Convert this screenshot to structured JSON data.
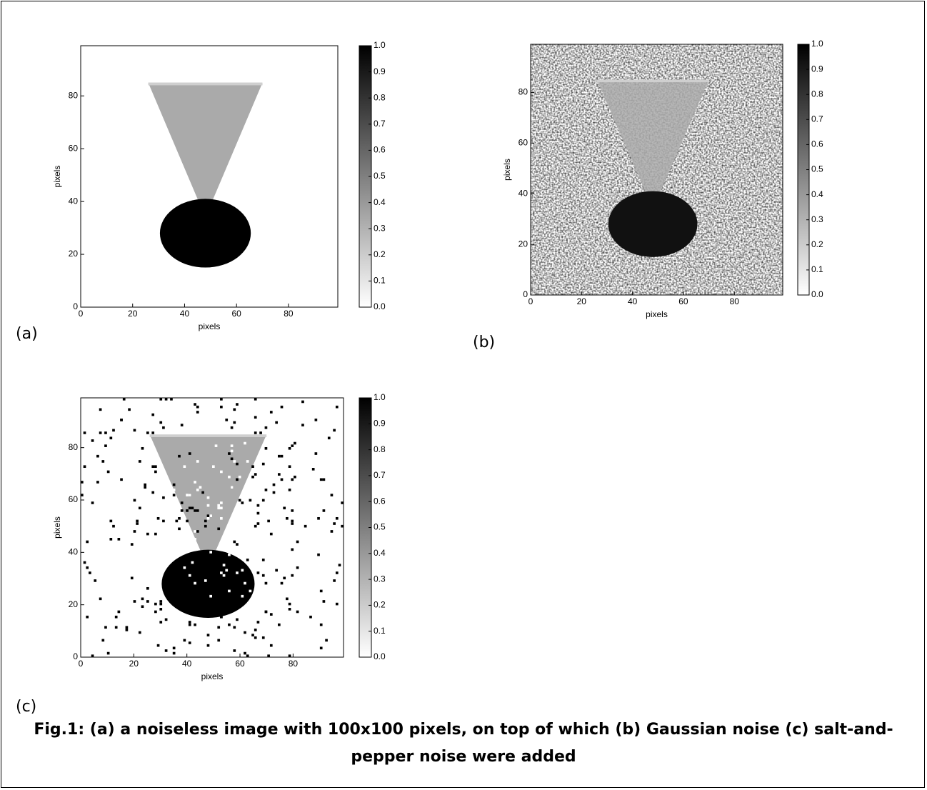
{
  "chart_data": [
    {
      "type": "image",
      "xlabel": "pixels",
      "ylabel": "pixels",
      "xlim": [
        0,
        99
      ],
      "ylim": [
        0,
        99
      ],
      "xticks": [
        0,
        20,
        40,
        60,
        80
      ],
      "yticks": [
        0,
        20,
        40,
        60,
        80
      ],
      "colorbar": {
        "lim": [
          0,
          1
        ],
        "ticks": [
          {
            "value": 0,
            "label": "0.0"
          },
          0.1,
          0.2,
          0.3,
          0.4,
          0.5,
          0.6,
          0.7,
          0.8,
          0.9,
          {
            "value": 1,
            "label": "1.0"
          }
        ]
      }
    },
    {
      "type": "image",
      "xlabel": "pixels",
      "ylabel": "pixels",
      "xlim": [
        0,
        99
      ],
      "ylim": [
        0,
        99
      ],
      "xticks": [
        0,
        20,
        40,
        60,
        80
      ],
      "yticks": [
        0,
        20,
        40,
        60,
        80
      ],
      "colorbar": {
        "lim": [
          0,
          1
        ],
        "ticks": [
          {
            "value": 0,
            "label": "0.0"
          },
          0.1,
          0.2,
          0.3,
          0.4,
          0.5,
          0.6,
          0.7,
          0.8,
          0.9,
          {
            "value": 1,
            "label": "1.0"
          }
        ]
      }
    },
    {
      "type": "image",
      "xlabel": "pixels",
      "ylabel": "pixels",
      "xlim": [
        0,
        99
      ],
      "ylim": [
        0,
        99
      ],
      "xticks": [
        0,
        20,
        40,
        60,
        80
      ],
      "yticks": [
        0,
        20,
        40,
        60,
        80
      ],
      "colorbar": {
        "lim": [
          0,
          1
        ],
        "ticks": [
          {
            "value": 0,
            "label": "0.0"
          },
          0.1,
          0.2,
          0.3,
          0.4,
          0.5,
          0.6,
          0.7,
          0.8,
          0.9,
          {
            "value": 1,
            "label": "1.0"
          }
        ]
      }
    }
  ],
  "panel_labels": [
    "(a)",
    "(b)",
    "(c)"
  ],
  "caption": "Fig.1: (a) a noiseless image with 100x100 pixels, on top of which (b) Gaussian noise (c) salt-and-pepper noise were added"
}
